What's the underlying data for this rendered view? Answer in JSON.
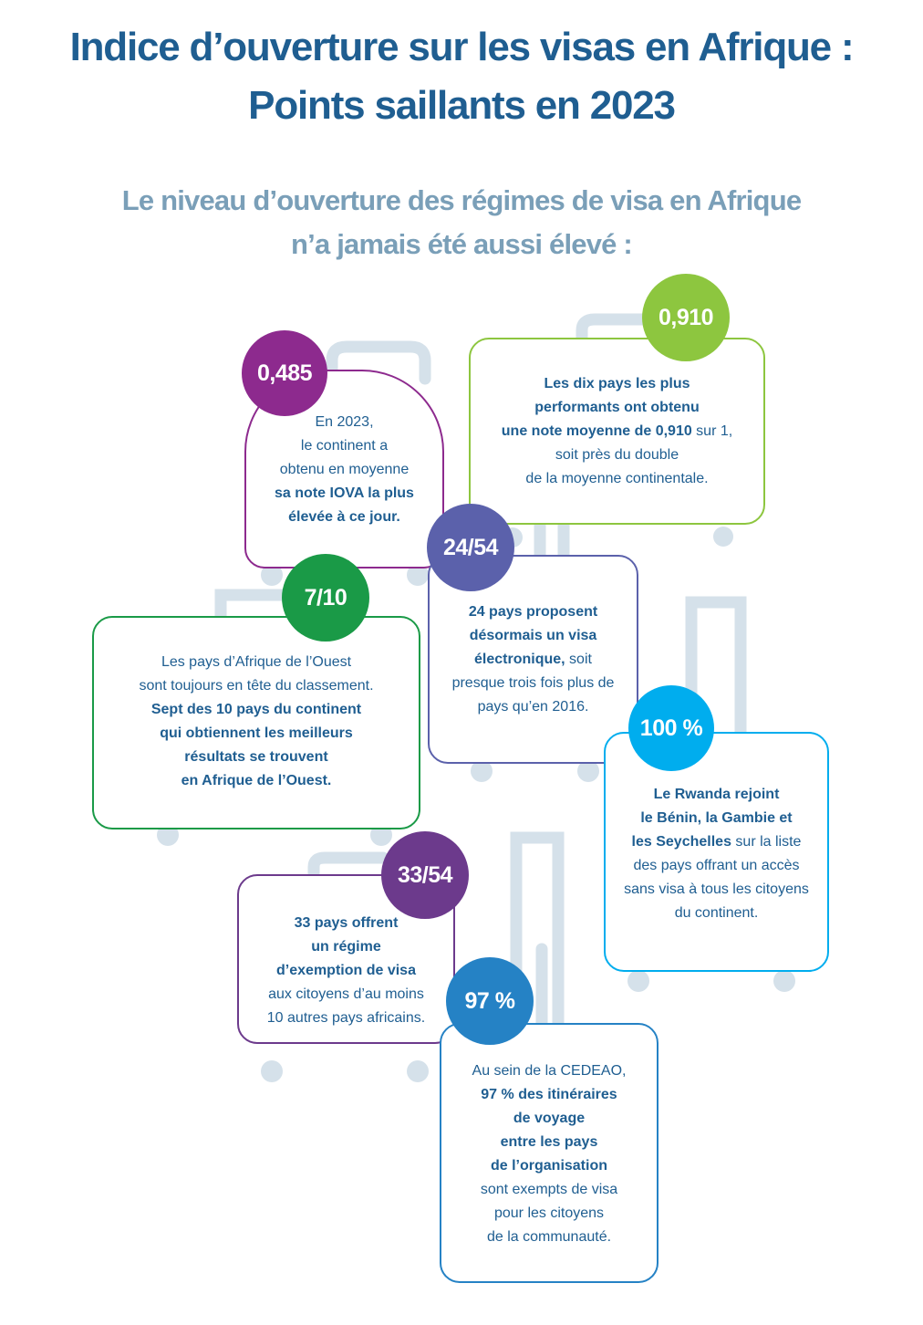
{
  "title": {
    "line1": "Indice d’ouverture sur les visas en Afrique :",
    "line2": "Points saillants en 2023"
  },
  "subtitle": {
    "line1": "Le niveau d’ouverture des régimes de visa en Afrique",
    "line2": "n’a jamais été aussi élevé :"
  },
  "colors": {
    "title": "#1f5e91",
    "subtitle": "#7a9fb8",
    "body_text": "#1f5e91",
    "luggage": "#d5e1ea",
    "purple": "#8d2a8e",
    "lime": "#8dc63f",
    "indigo": "#5b61ab",
    "green": "#1a9a47",
    "cyan": "#00adee",
    "violet": "#6c3a8c",
    "blue": "#2582c5"
  },
  "cards": {
    "c485": {
      "badge": "0,485",
      "l1": "En 2023,",
      "l2": "le continent a",
      "l3": "obtenu en moyenne",
      "l4": "sa note IOVA la plus",
      "l5": "élevée à ce jour."
    },
    "c910": {
      "badge": "0,910",
      "l1": "Les dix pays les plus",
      "l2": "performants ont obtenu",
      "l3_bold": "une note moyenne de 0,910",
      "l3_rest": " sur 1,",
      "l4": "soit près du double",
      "l5": "de la moyenne continentale."
    },
    "c24": {
      "badge": "24/54",
      "l1": "24 pays proposent",
      "l2": "désormais un visa",
      "l3_bold": "électronique,",
      "l3_rest": " soit",
      "l4": "presque trois fois plus de",
      "l5": "pays qu’en 2016."
    },
    "c710": {
      "badge": "7/10",
      "l1": "Les pays d’Afrique de l’Ouest",
      "l2": "sont toujours en tête du classement.",
      "l3": "Sept des 10 pays du continent",
      "l4": "qui obtiennent les meilleurs",
      "l5": "résultats se trouvent",
      "l6": "en Afrique de l’Ouest."
    },
    "c100": {
      "badge": "100 %",
      "l1": "Le Rwanda rejoint",
      "l2": "le Bénin, la Gambie et",
      "l3_bold": "les Seychelles",
      "l3_rest": " sur la liste",
      "l4": "des pays offrant un accès",
      "l5": "sans visa à tous les citoyens",
      "l6": "du continent."
    },
    "c33": {
      "badge": "33/54",
      "l1": "33 pays offrent",
      "l2": "un régime",
      "l3": "d’exemption de visa",
      "l4": "aux citoyens d’au moins",
      "l5": "10 autres pays africains."
    },
    "c97": {
      "badge": "97 %",
      "l1": "Au sein de la CEDEAO,",
      "l2": "97 % des itinéraires",
      "l3": "de voyage",
      "l4": "entre les pays",
      "l5": "de l’organisation",
      "l6": "sont exempts de visa",
      "l7": "pour les citoyens",
      "l8": "de la communauté."
    }
  }
}
